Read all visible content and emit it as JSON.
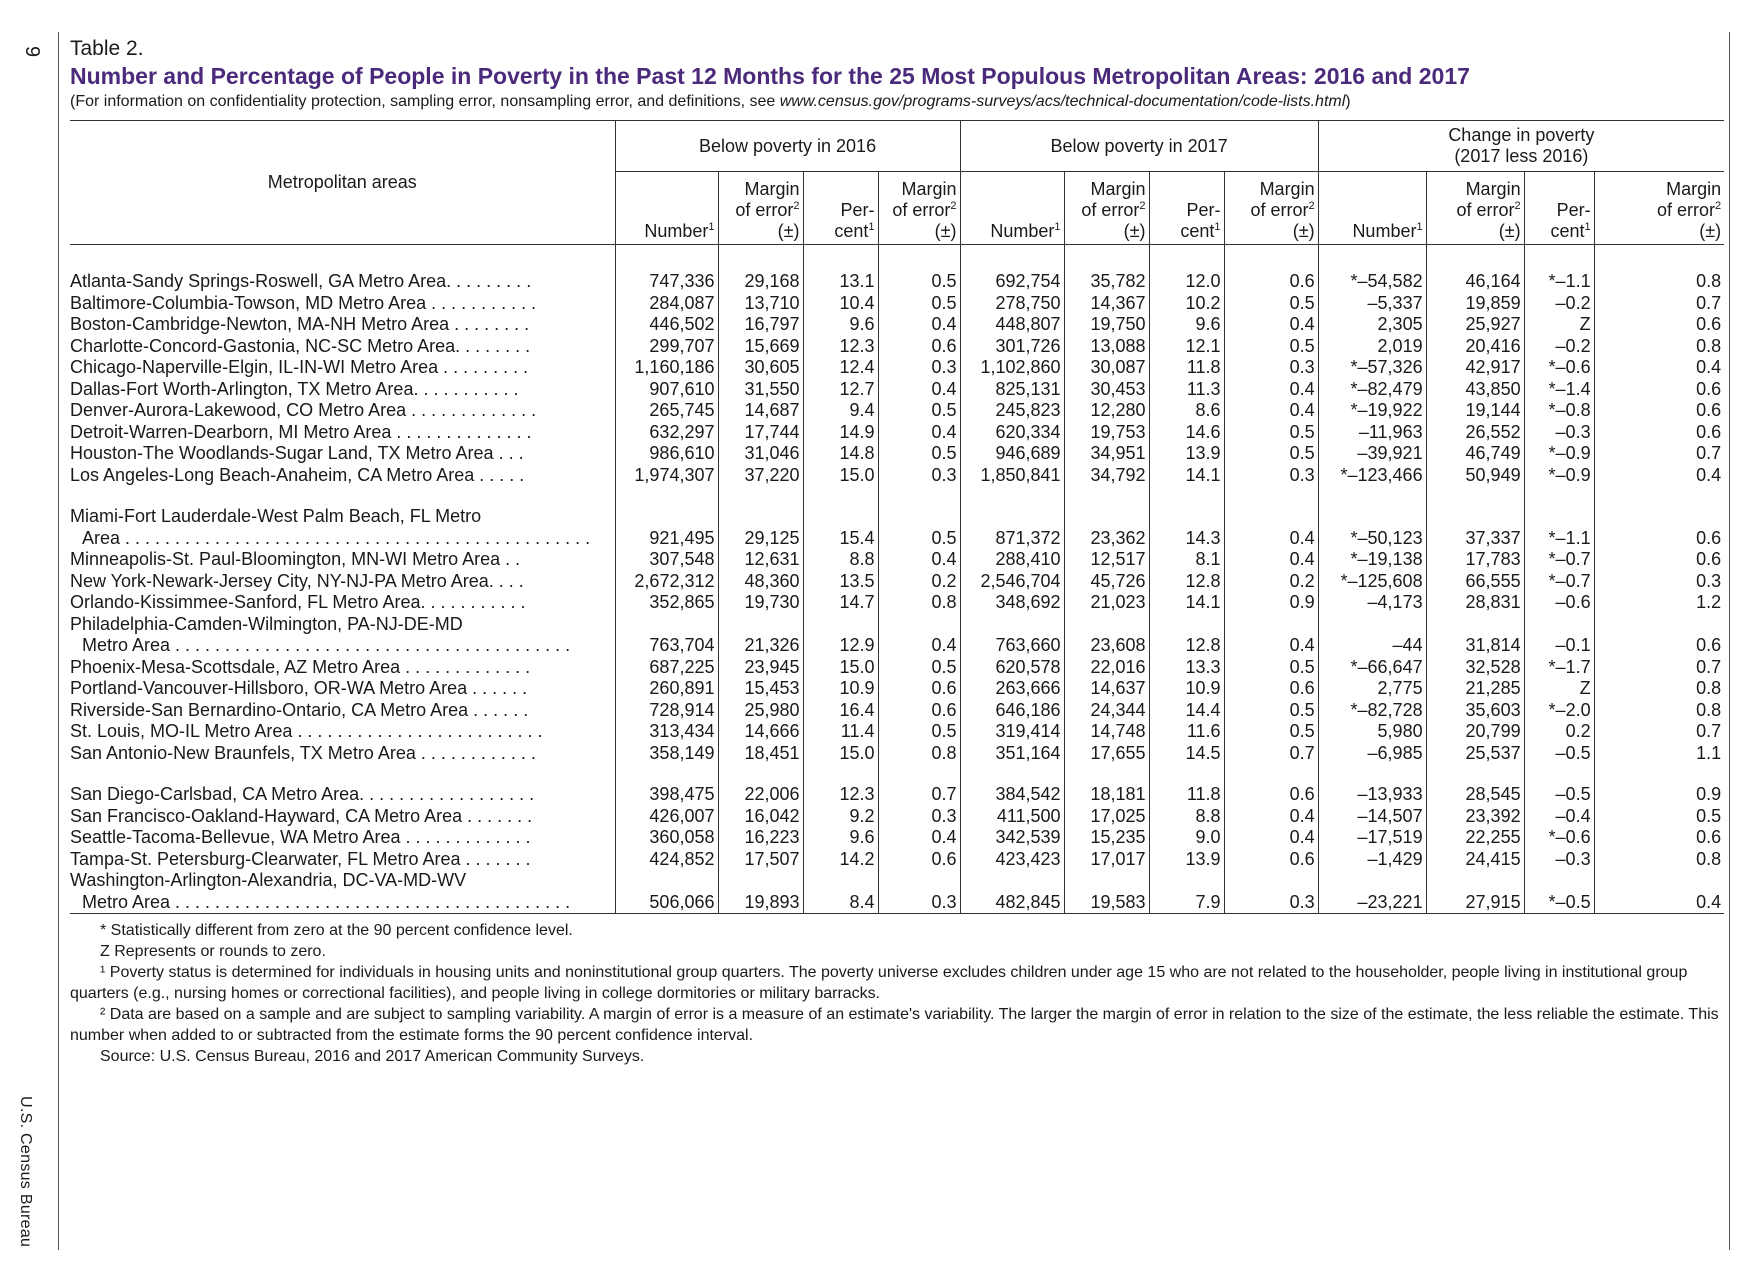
{
  "page_number": "9",
  "agency": "U.S. Census Bureau",
  "table_label": "Table 2.",
  "title": "Number and Percentage of People in Poverty in the Past 12 Months for the 25 Most Populous Metropolitan Areas: 2016 and 2017",
  "subtitle_prefix": "(For information on confidentiality protection, sampling error, nonsampling error, and definitions, see ",
  "subtitle_url": "www.census.gov/programs-surveys/acs/technical-documentation/code-lists.html",
  "subtitle_suffix": ")",
  "headers": {
    "area": "Metropolitan areas",
    "group_2016": "Below poverty in 2016",
    "group_2017": "Below poverty in 2017",
    "group_change_line1": "Change in poverty",
    "group_change_line2": "(2017 less 2016)",
    "number": "Number",
    "margin_line1": "Margin",
    "margin_line2": "of error",
    "pm": "(±)",
    "percent_line1": "Per-",
    "percent_line2": "cent",
    "sup1": "1",
    "sup2": "2"
  },
  "rows": [
    {
      "name": "Atlanta-Sandy Springs-Roswell, GA Metro Area. . . . . . . . .",
      "v": [
        "747,336",
        "29,168",
        "13.1",
        "0.5",
        "692,754",
        "35,782",
        "12.0",
        "0.6",
        "*–54,582",
        "46,164",
        "*–1.1",
        "0.8"
      ]
    },
    {
      "name": "Baltimore-Columbia-Towson, MD Metro Area . . . . . . . . . . .",
      "v": [
        "284,087",
        "13,710",
        "10.4",
        "0.5",
        "278,750",
        "14,367",
        "10.2",
        "0.5",
        "–5,337",
        "19,859",
        "–0.2",
        "0.7"
      ]
    },
    {
      "name": "Boston-Cambridge-Newton, MA-NH Metro Area . . . . . . . .",
      "v": [
        "446,502",
        "16,797",
        "9.6",
        "0.4",
        "448,807",
        "19,750",
        "9.6",
        "0.4",
        "2,305",
        "25,927",
        "Z",
        "0.6"
      ]
    },
    {
      "name": "Charlotte-Concord-Gastonia, NC-SC Metro Area. . . . . . . .",
      "v": [
        "299,707",
        "15,669",
        "12.3",
        "0.6",
        "301,726",
        "13,088",
        "12.1",
        "0.5",
        "2,019",
        "20,416",
        "–0.2",
        "0.8"
      ]
    },
    {
      "name": "Chicago-Naperville-Elgin, IL-IN-WI Metro Area . . . . . . . . .",
      "v": [
        "1,160,186",
        "30,605",
        "12.4",
        "0.3",
        "1,102,860",
        "30,087",
        "11.8",
        "0.3",
        "*–57,326",
        "42,917",
        "*–0.6",
        "0.4"
      ]
    },
    {
      "name": "Dallas-Fort Worth-Arlington, TX Metro Area. . . . . . . . . . .",
      "v": [
        "907,610",
        "31,550",
        "12.7",
        "0.4",
        "825,131",
        "30,453",
        "11.3",
        "0.4",
        "*–82,479",
        "43,850",
        "*–1.4",
        "0.6"
      ]
    },
    {
      "name": "Denver-Aurora-Lakewood, CO Metro Area . . . . . . . . . . . . .",
      "v": [
        "265,745",
        "14,687",
        "9.4",
        "0.5",
        "245,823",
        "12,280",
        "8.6",
        "0.4",
        "*–19,922",
        "19,144",
        "*–0.8",
        "0.6"
      ]
    },
    {
      "name": "Detroit-Warren-Dearborn, MI Metro Area . . . . . . . . . . . . . .",
      "v": [
        "632,297",
        "17,744",
        "14.9",
        "0.4",
        "620,334",
        "19,753",
        "14.6",
        "0.5",
        "–11,963",
        "26,552",
        "–0.3",
        "0.6"
      ]
    },
    {
      "name": "Houston-The Woodlands-Sugar Land, TX Metro Area . . .",
      "v": [
        "986,610",
        "31,046",
        "14.8",
        "0.5",
        "946,689",
        "34,951",
        "13.9",
        "0.5",
        "–39,921",
        "46,749",
        "*–0.9",
        "0.7"
      ]
    },
    {
      "name": "Los Angeles-Long Beach-Anaheim, CA Metro Area . . . . .",
      "v": [
        "1,974,307",
        "37,220",
        "15.0",
        "0.3",
        "1,850,841",
        "34,792",
        "14.1",
        "0.3",
        "*–123,466",
        "50,949",
        "*–0.9",
        "0.4"
      ]
    },
    {
      "name": "Miami-Fort Lauderdale-West Palm Beach, FL Metro",
      "cont": "Area . . . . . . . . . . . . . . . . . . . . . . . . . . . . . . . . . . . . . . . . . . . . . . .",
      "v": [
        "921,495",
        "29,125",
        "15.4",
        "0.5",
        "871,372",
        "23,362",
        "14.3",
        "0.4",
        "*–50,123",
        "37,337",
        "*–1.1",
        "0.6"
      ]
    },
    {
      "name": "Minneapolis-St. Paul-Bloomington, MN-WI Metro Area . .",
      "v": [
        "307,548",
        "12,631",
        "8.8",
        "0.4",
        "288,410",
        "12,517",
        "8.1",
        "0.4",
        "*–19,138",
        "17,783",
        "*–0.7",
        "0.6"
      ]
    },
    {
      "name": "New York-Newark-Jersey City, NY-NJ-PA Metro Area. . . .",
      "v": [
        "2,672,312",
        "48,360",
        "13.5",
        "0.2",
        "2,546,704",
        "45,726",
        "12.8",
        "0.2",
        "*–125,608",
        "66,555",
        "*–0.7",
        "0.3"
      ]
    },
    {
      "name": "Orlando-Kissimmee-Sanford, FL Metro Area. . . . . . . . . . .",
      "v": [
        "352,865",
        "19,730",
        "14.7",
        "0.8",
        "348,692",
        "21,023",
        "14.1",
        "0.9",
        "–4,173",
        "28,831",
        "–0.6",
        "1.2"
      ]
    },
    {
      "name": "Philadelphia-Camden-Wilmington, PA-NJ-DE-MD",
      "cont": "Metro Area . . . . . . . . . . . . . . . . . . . . . . . . . . . . . . . . . . . . . . . .",
      "v": [
        "763,704",
        "21,326",
        "12.9",
        "0.4",
        "763,660",
        "23,608",
        "12.8",
        "0.4",
        "–44",
        "31,814",
        "–0.1",
        "0.6"
      ]
    },
    {
      "name": "Phoenix-Mesa-Scottsdale, AZ Metro Area . . . . . . . . . . . . .",
      "v": [
        "687,225",
        "23,945",
        "15.0",
        "0.5",
        "620,578",
        "22,016",
        "13.3",
        "0.5",
        "*–66,647",
        "32,528",
        "*–1.7",
        "0.7"
      ]
    },
    {
      "name": "Portland-Vancouver-Hillsboro, OR-WA Metro Area . . . . . .",
      "v": [
        "260,891",
        "15,453",
        "10.9",
        "0.6",
        "263,666",
        "14,637",
        "10.9",
        "0.6",
        "2,775",
        "21,285",
        "Z",
        "0.8"
      ]
    },
    {
      "name": "Riverside-San Bernardino-Ontario, CA Metro Area . . . . . .",
      "v": [
        "728,914",
        "25,980",
        "16.4",
        "0.6",
        "646,186",
        "24,344",
        "14.4",
        "0.5",
        "*–82,728",
        "35,603",
        "*–2.0",
        "0.8"
      ]
    },
    {
      "name": "St. Louis, MO-IL Metro Area . . . . . . . . . . . . . . . . . . . . . . . . .",
      "v": [
        "313,434",
        "14,666",
        "11.4",
        "0.5",
        "319,414",
        "14,748",
        "11.6",
        "0.5",
        "5,980",
        "20,799",
        "0.2",
        "0.7"
      ]
    },
    {
      "name": "San Antonio-New Braunfels, TX Metro Area . . . . . . . . . . . .",
      "v": [
        "358,149",
        "18,451",
        "15.0",
        "0.8",
        "351,164",
        "17,655",
        "14.5",
        "0.7",
        "–6,985",
        "25,537",
        "–0.5",
        "1.1"
      ]
    },
    {
      "name": "San Diego-Carlsbad, CA Metro Area. . . . . . . . . . . . . . . . . .",
      "v": [
        "398,475",
        "22,006",
        "12.3",
        "0.7",
        "384,542",
        "18,181",
        "11.8",
        "0.6",
        "–13,933",
        "28,545",
        "–0.5",
        "0.9"
      ]
    },
    {
      "name": "San Francisco-Oakland-Hayward, CA Metro Area . . . . . . .",
      "v": [
        "426,007",
        "16,042",
        "9.2",
        "0.3",
        "411,500",
        "17,025",
        "8.8",
        "0.4",
        "–14,507",
        "23,392",
        "–0.4",
        "0.5"
      ]
    },
    {
      "name": "Seattle-Tacoma-Bellevue, WA Metro Area . . . . . . . . . . . . .",
      "v": [
        "360,058",
        "16,223",
        "9.6",
        "0.4",
        "342,539",
        "15,235",
        "9.0",
        "0.4",
        "–17,519",
        "22,255",
        "*–0.6",
        "0.6"
      ]
    },
    {
      "name": "Tampa-St. Petersburg-Clearwater, FL Metro Area . . . . . . .",
      "v": [
        "424,852",
        "17,507",
        "14.2",
        "0.6",
        "423,423",
        "17,017",
        "13.9",
        "0.6",
        "–1,429",
        "24,415",
        "–0.3",
        "0.8"
      ]
    },
    {
      "name": "Washington-Arlington-Alexandria, DC-VA-MD-WV",
      "cont": "Metro Area . . . . . . . . . . . . . . . . . . . . . . . . . . . . . . . . . . . . . . . .",
      "v": [
        "506,066",
        "19,893",
        "8.4",
        "0.3",
        "482,845",
        "19,583",
        "7.9",
        "0.3",
        "–23,221",
        "27,915",
        "*–0.5",
        "0.4"
      ]
    }
  ],
  "notes": [
    "* Statistically different from zero at the 90 percent confidence level.",
    "Z Represents or rounds to zero.",
    "¹ Poverty status is determined for individuals in housing units and noninstitutional group quarters. The poverty universe excludes children under age 15 who are not related to the householder, people living in institutional group quarters (e.g., nursing homes or correctional facilities), and people living in college dormitories or military barracks.",
    "² Data are based on a sample and are subject to sampling variability. A margin of error is a measure of an estimate's variability. The larger the margin of error in relation to the size of the estimate, the less reliable the estimate. This number when added to or subtracted from the estimate forms the 90 percent confidence interval.",
    "Source: U.S. Census Bureau, 2016 and 2017 American Community Surveys."
  ]
}
